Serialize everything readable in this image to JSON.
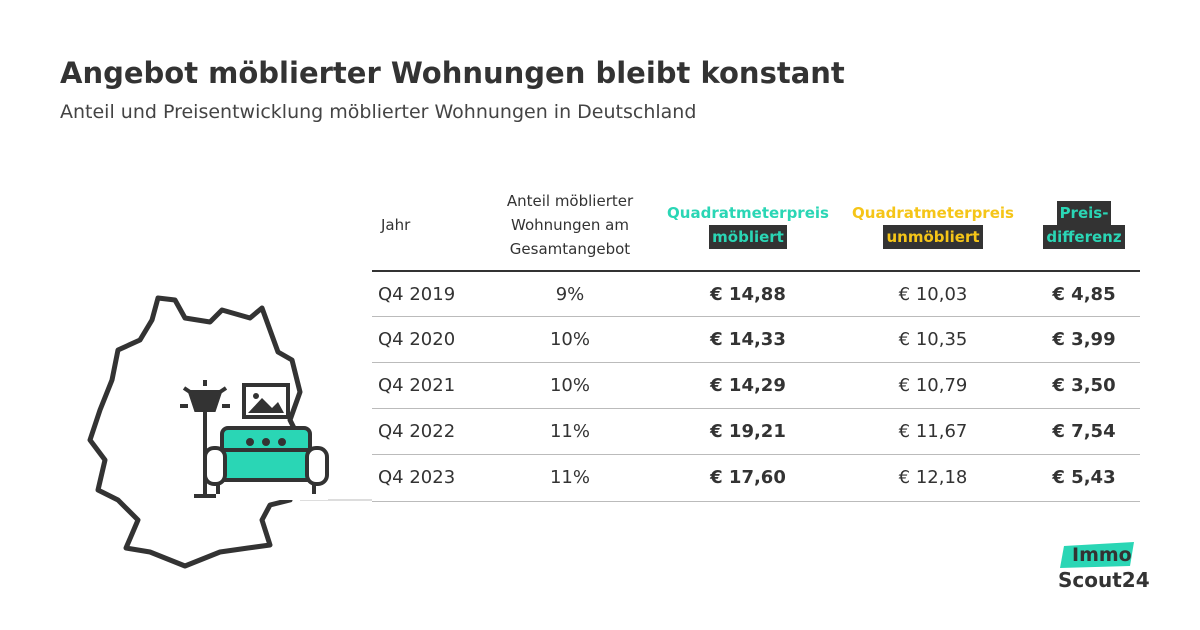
{
  "header": {
    "title": "Angebot möblierter Wohnungen bleibt konstant",
    "subtitle": "Anteil und Preisentwicklung möblierter Wohnungen in Deutschland"
  },
  "table": {
    "columns": [
      {
        "lines": [
          "Jahr"
        ]
      },
      {
        "lines": [
          "Anteil möblierter",
          "Wohnungen am",
          "Gesamtangebot"
        ]
      },
      {
        "lines": [
          "Quadratmeterpreis",
          "möbliert"
        ]
      },
      {
        "lines": [
          "Quadratmeterpreis",
          "unmöbliert"
        ]
      },
      {
        "lines": [
          "Preis-",
          "differenz"
        ]
      }
    ],
    "rows": [
      [
        "Q4 2019",
        "9%",
        "€ 14,88",
        "€ 10,03",
        "€ 4,85"
      ],
      [
        "Q4 2020",
        "10%",
        "€ 14,33",
        "€ 10,35",
        "€ 3,99"
      ],
      [
        "Q4 2021",
        "10%",
        "€ 14,29",
        "€ 10,79",
        "€ 3,50"
      ],
      [
        "Q4 2022",
        "11%",
        "€ 19,21",
        "€ 11,67",
        "€ 7,54"
      ],
      [
        "Q4 2023",
        "11%",
        "€ 17,60",
        "€ 12,18",
        "€ 5,43"
      ]
    ]
  },
  "logo": {
    "top": "Immo",
    "bottom": "Scout24"
  }
}
